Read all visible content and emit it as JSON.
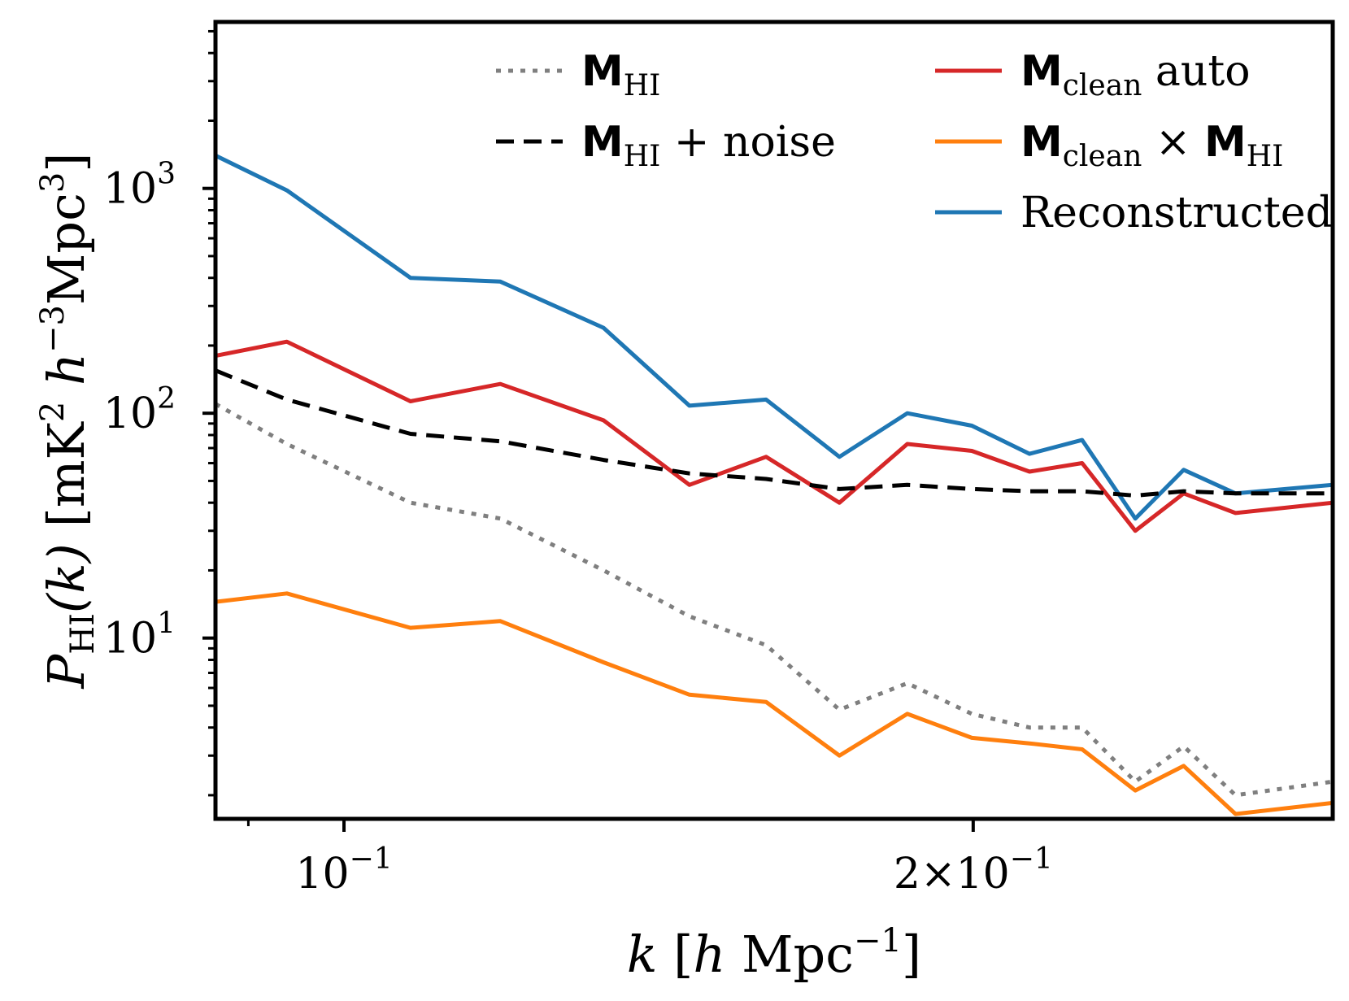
{
  "chart_data": {
    "type": "line",
    "xscale": "log",
    "yscale": "log",
    "xlim": [
      0.0868,
      0.2972
    ],
    "ylim": [
      1.57,
      5500
    ],
    "xlabel": {
      "main": "k",
      "unit_open": " [",
      "h": "h",
      "space": " ",
      "mpc": "Mpc",
      "exp": "−1",
      "close": "]"
    },
    "ylabel": {
      "main": "P",
      "sub": "HI",
      "arg": "(k)",
      "unit_open": " [mK",
      "sq": "2",
      "h": " h",
      "hexp": "−3",
      "mpc": "Mpc",
      "mexp": "3",
      "close": "]"
    },
    "xticks": [
      {
        "value": 0.1,
        "base": "10",
        "exp": "−1",
        "prefix": ""
      },
      {
        "value": 0.2,
        "base": "10",
        "exp": "−1",
        "prefix": "2×"
      }
    ],
    "yticks": [
      {
        "value": 10,
        "base": "10",
        "exp": "1"
      },
      {
        "value": 100,
        "base": "10",
        "exp": "2"
      },
      {
        "value": 1000,
        "base": "10",
        "exp": "3"
      }
    ],
    "x": [
      0.0868,
      0.0939,
      0.1076,
      0.1188,
      0.1331,
      0.1463,
      0.1592,
      0.1726,
      0.186,
      0.1997,
      0.2128,
      0.2255,
      0.2391,
      0.2522,
      0.267,
      0.2972
    ],
    "series": [
      {
        "name": "M_HI",
        "legend": {
          "bold": "M",
          "sub": "HI",
          "rest": ""
        },
        "color": "#7f7f7f",
        "style": "dotted",
        "values": [
          110,
          73,
          40,
          34,
          20,
          12.5,
          9.3,
          4.8,
          6.3,
          4.6,
          4.0,
          4.0,
          2.3,
          3.3,
          2.0,
          2.3
        ]
      },
      {
        "name": "M_HI + noise",
        "legend": {
          "bold": "M",
          "sub": "HI",
          "rest": " + noise"
        },
        "color": "#000000",
        "style": "dashed",
        "values": [
          155,
          115,
          81,
          75,
          62,
          54,
          51,
          46,
          48,
          46,
          45,
          45,
          43,
          45,
          44,
          44
        ]
      },
      {
        "name": "M_clean auto",
        "legend": {
          "bold": "M",
          "sub": "clean",
          "rest": " auto"
        },
        "color": "#d62728",
        "style": "solid",
        "values": [
          180,
          208,
          113,
          135,
          93,
          48,
          64,
          40,
          73,
          68,
          55,
          60,
          30,
          44,
          36,
          40
        ]
      },
      {
        "name": "M_clean x M_HI",
        "legend": {
          "bold": "M",
          "sub": "clean",
          "rest": " × ",
          "bold2": "M",
          "sub2": "HI"
        },
        "color": "#ff7f0e",
        "style": "solid",
        "values": [
          14.5,
          15.8,
          11.1,
          11.9,
          7.8,
          5.6,
          5.2,
          3.0,
          4.6,
          3.6,
          3.4,
          3.2,
          2.1,
          2.7,
          1.65,
          1.85
        ]
      },
      {
        "name": "Reconstructed",
        "legend": {
          "bold": "",
          "sub": "",
          "rest": "Reconstructed"
        },
        "color": "#1f77b4",
        "style": "solid",
        "values": [
          1400,
          980,
          400,
          385,
          240,
          108,
          115,
          64,
          100,
          88,
          66,
          76,
          34,
          56,
          44,
          48
        ]
      }
    ]
  }
}
